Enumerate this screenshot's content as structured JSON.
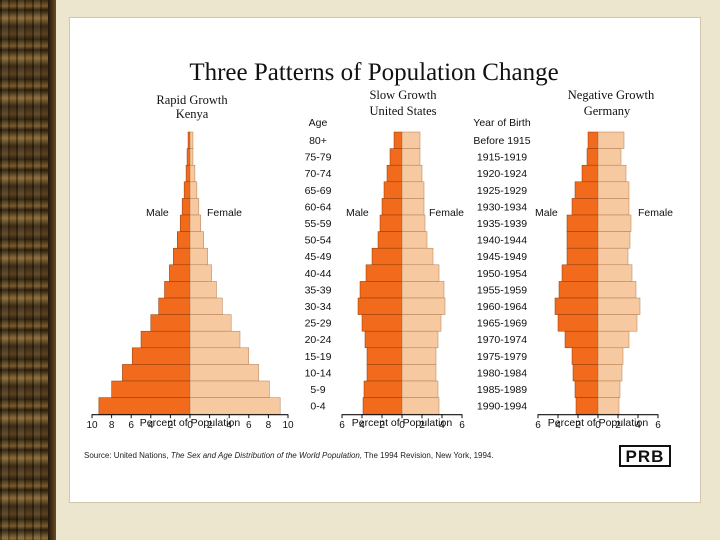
{
  "chart_data": {
    "type": "bar",
    "subtype": "population-pyramid",
    "title": "Three Patterns of Population Change",
    "age_header": "Age",
    "year_header": "Year of Birth",
    "ages": [
      "80+",
      "75-79",
      "70-74",
      "65-69",
      "60-64",
      "55-59",
      "50-54",
      "45-49",
      "40-44",
      "35-39",
      "30-34",
      "25-29",
      "20-24",
      "15-19",
      "10-14",
      "5-9",
      "0-4"
    ],
    "years": [
      "Before 1915",
      "1915-1919",
      "1920-1924",
      "1925-1929",
      "1930-1934",
      "1935-1939",
      "1940-1944",
      "1945-1949",
      "1950-1954",
      "1955-1959",
      "1960-1964",
      "1965-1969",
      "1970-1974",
      "1975-1979",
      "1980-1984",
      "1985-1989",
      "1990-1994"
    ],
    "male_label": "Male",
    "female_label": "Female",
    "xlabel": "Percent of Population",
    "male_color": "#f26a1b",
    "female_color": "#f7c9a0",
    "panels": [
      {
        "name": "Rapid Growth",
        "country": "Kenya",
        "xlim": 10,
        "ticks": [
          "10",
          "8",
          "6",
          "4",
          "2",
          "0",
          "2",
          "4",
          "6",
          "8",
          "10"
        ],
        "male": [
          0.2,
          0.3,
          0.4,
          0.6,
          0.8,
          1.0,
          1.3,
          1.7,
          2.1,
          2.6,
          3.2,
          4.0,
          5.0,
          5.9,
          6.9,
          8.0,
          9.3
        ],
        "female": [
          0.3,
          0.3,
          0.5,
          0.7,
          0.9,
          1.1,
          1.4,
          1.8,
          2.2,
          2.7,
          3.3,
          4.2,
          5.1,
          6.0,
          7.0,
          8.1,
          9.2
        ]
      },
      {
        "name": "Slow Growth",
        "country": "United States",
        "xlim": 6,
        "ticks": [
          "6",
          "4",
          "2",
          "0",
          "2",
          "4",
          "6"
        ],
        "male": [
          0.8,
          1.2,
          1.5,
          1.8,
          2.0,
          2.2,
          2.4,
          3.0,
          3.6,
          4.2,
          4.4,
          4.0,
          3.7,
          3.5,
          3.5,
          3.8,
          3.9
        ],
        "female": [
          1.8,
          1.8,
          2.0,
          2.2,
          2.2,
          2.3,
          2.5,
          3.1,
          3.7,
          4.2,
          4.3,
          3.9,
          3.6,
          3.4,
          3.4,
          3.6,
          3.7
        ]
      },
      {
        "name": "Negative Growth",
        "country": "Germany",
        "xlim": 6,
        "ticks": [
          "6",
          "4",
          "2",
          "0",
          "2",
          "4",
          "6"
        ],
        "male": [
          1.0,
          1.1,
          1.6,
          2.3,
          2.6,
          3.1,
          3.1,
          3.1,
          3.6,
          3.9,
          4.3,
          4.0,
          3.3,
          2.6,
          2.5,
          2.3,
          2.2
        ],
        "female": [
          2.6,
          2.3,
          2.8,
          3.1,
          3.1,
          3.3,
          3.2,
          3.0,
          3.4,
          3.8,
          4.2,
          3.9,
          3.1,
          2.5,
          2.4,
          2.2,
          2.1
        ]
      }
    ]
  },
  "source": {
    "prefix": "Source: United Nations, ",
    "work": "The Sex and Age Distribution of the World Population,",
    "suffix": " The 1994 Revision, New York, 1994."
  },
  "logo": "PRB"
}
